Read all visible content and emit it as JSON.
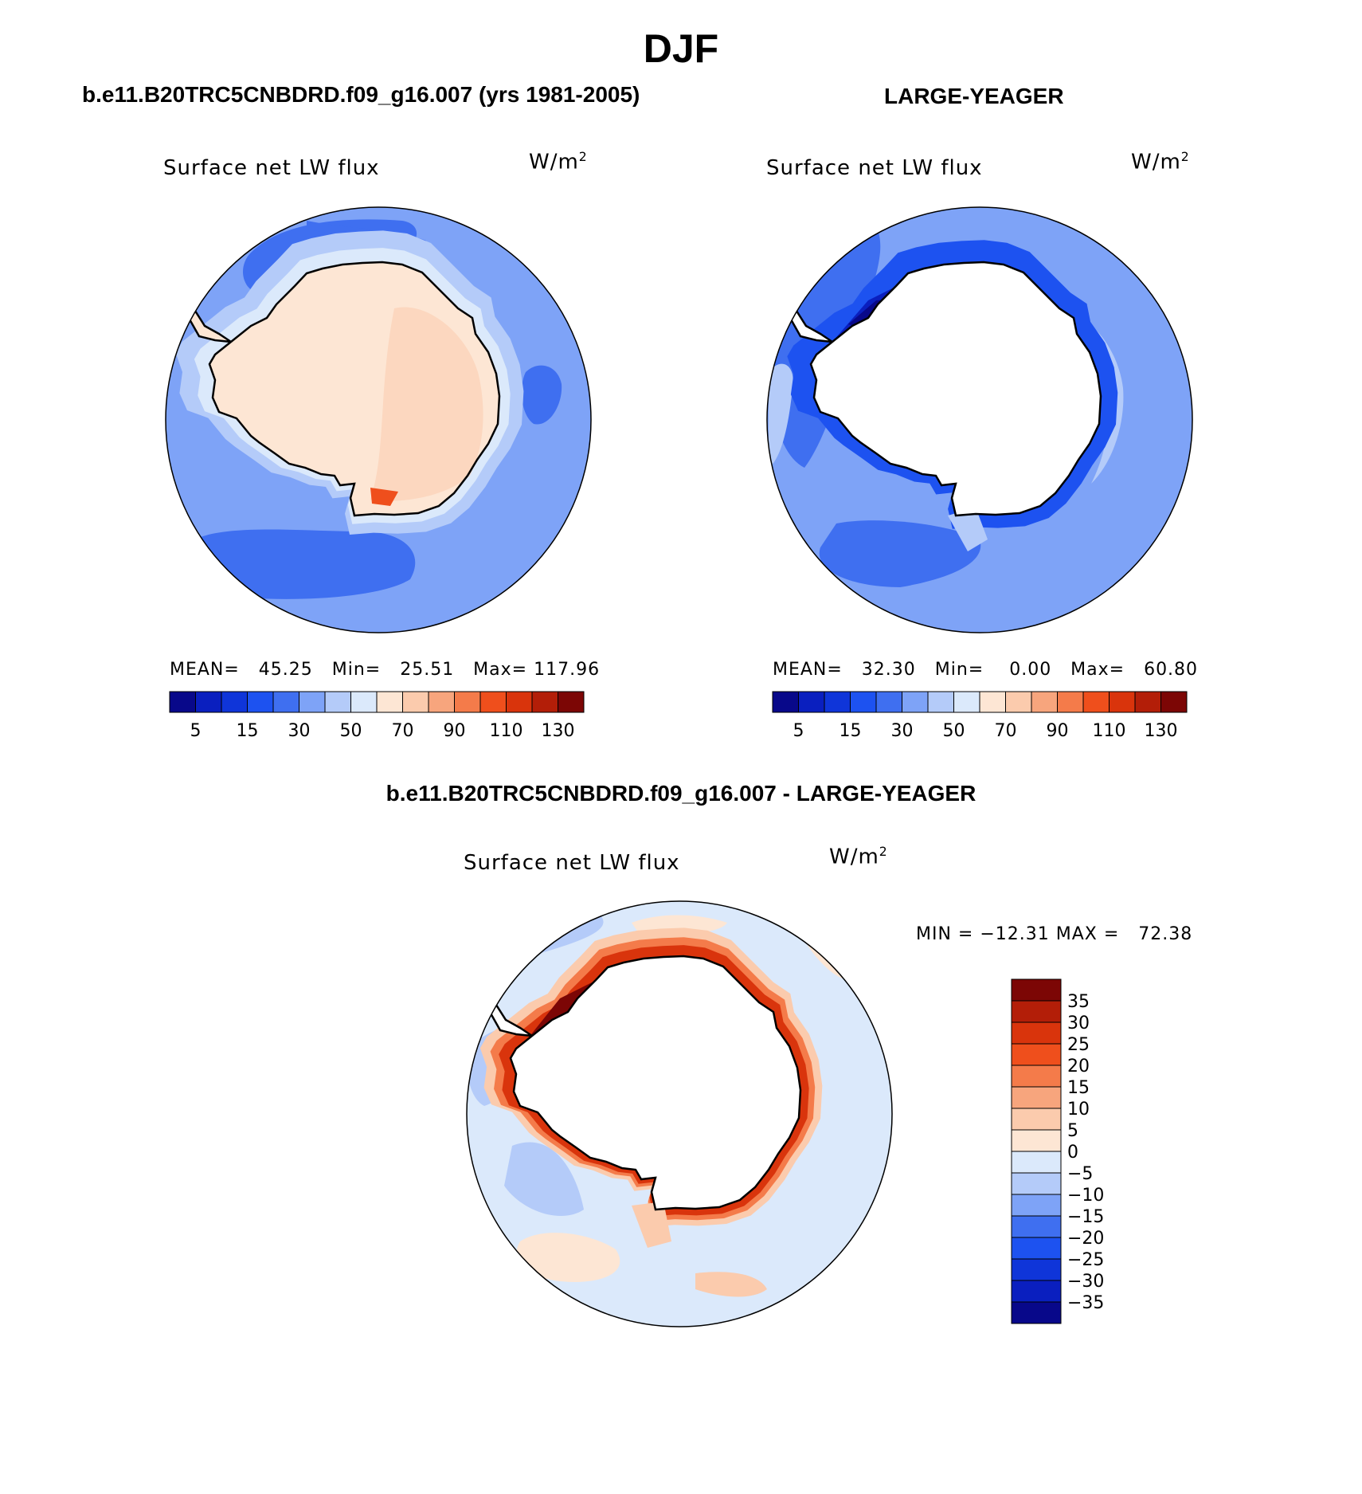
{
  "page": {
    "season": "DJF",
    "left_title": "b.e11.B20TRC5CNBDRD.f09_g16.007 (yrs 1981-2005)",
    "right_title": "LARGE-YEAGER",
    "diff_title": "b.e11.B20TRC5CNBDRD.f09_g16.007 - LARGE-YEAGER"
  },
  "panels": {
    "model": {
      "variable": "Surface net LW flux",
      "units_base": "W/m",
      "units_exp": "2",
      "stats": "MEAN=   45.25   Min=   25.51   Max= 117.96"
    },
    "obs": {
      "variable": "Surface net LW flux",
      "units_base": "W/m",
      "units_exp": "2",
      "stats": "MEAN=   32.30   Min=    0.00   Max=   60.80"
    },
    "diff": {
      "variable": "Surface net LW flux",
      "units_base": "W/m",
      "units_exp": "2",
      "stats": "MIN = −12.31 MAX =   72.38"
    }
  },
  "colorbars": {
    "abs": {
      "colors": [
        "#08088a",
        "#0a1fbf",
        "#0f35d9",
        "#1d52f0",
        "#3f6ff0",
        "#7ea3f7",
        "#b4cbf9",
        "#dbe9fb",
        "#fde6d4",
        "#fbcbad",
        "#f7a57d",
        "#f47b4a",
        "#ef4f1c",
        "#d9340c",
        "#b31e08",
        "#7c0605"
      ],
      "tick_labels": [
        "5",
        "15",
        "30",
        "50",
        "70",
        "90",
        "110",
        "130"
      ]
    },
    "diff": {
      "colors": [
        "#08088a",
        "#0a1fbf",
        "#0f35d9",
        "#1d52f0",
        "#3f6ff0",
        "#7ea3f7",
        "#b4cbf9",
        "#dbe9fb",
        "#fde6d4",
        "#fbcbad",
        "#f7a57d",
        "#f47b4a",
        "#ef4f1c",
        "#d9340c",
        "#b31e08",
        "#7c0605"
      ],
      "tick_labels": [
        "35",
        "30",
        "25",
        "20",
        "15",
        "10",
        "5",
        "0",
        "−5",
        "−10",
        "−15",
        "−20",
        "−25",
        "−30",
        "−35"
      ]
    }
  }
}
